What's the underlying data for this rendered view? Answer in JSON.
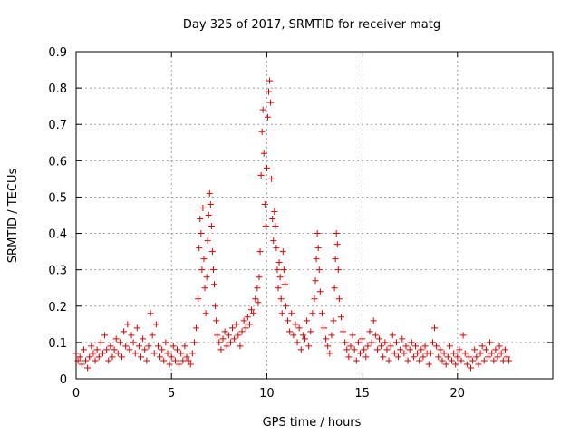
{
  "chart_data": {
    "type": "scatter",
    "title": "Day 325 of 2017, SRMTID for receiver matg",
    "xlabel": "GPS time / hours",
    "ylabel": "SRMTID / TECUs",
    "xlim": [
      0,
      25
    ],
    "ylim": [
      0,
      0.9
    ],
    "xticks": [
      0,
      5,
      10,
      15,
      20
    ],
    "yticks": [
      0,
      0.1,
      0.2,
      0.3,
      0.4,
      0.5,
      0.6,
      0.7,
      0.8,
      0.9
    ],
    "grid": true,
    "marker": "+",
    "color": "#e00000",
    "series": [
      {
        "name": "matg",
        "points": [
          [
            0.0,
            0.07
          ],
          [
            0.1,
            0.05
          ],
          [
            0.2,
            0.06
          ],
          [
            0.3,
            0.04
          ],
          [
            0.4,
            0.08
          ],
          [
            0.5,
            0.05
          ],
          [
            0.6,
            0.03
          ],
          [
            0.7,
            0.06
          ],
          [
            0.8,
            0.09
          ],
          [
            0.9,
            0.07
          ],
          [
            1.0,
            0.05
          ],
          [
            1.1,
            0.08
          ],
          [
            1.2,
            0.06
          ],
          [
            1.3,
            0.1
          ],
          [
            1.4,
            0.07
          ],
          [
            1.5,
            0.12
          ],
          [
            1.6,
            0.08
          ],
          [
            1.7,
            0.05
          ],
          [
            1.8,
            0.09
          ],
          [
            1.9,
            0.06
          ],
          [
            2.0,
            0.08
          ],
          [
            2.1,
            0.11
          ],
          [
            2.2,
            0.07
          ],
          [
            2.3,
            0.1
          ],
          [
            2.4,
            0.06
          ],
          [
            2.5,
            0.13
          ],
          [
            2.6,
            0.09
          ],
          [
            2.7,
            0.15
          ],
          [
            2.8,
            0.08
          ],
          [
            2.9,
            0.12
          ],
          [
            3.0,
            0.1
          ],
          [
            3.1,
            0.07
          ],
          [
            3.2,
            0.14
          ],
          [
            3.3,
            0.09
          ],
          [
            3.4,
            0.06
          ],
          [
            3.5,
            0.11
          ],
          [
            3.6,
            0.08
          ],
          [
            3.7,
            0.05
          ],
          [
            3.8,
            0.09
          ],
          [
            3.9,
            0.18
          ],
          [
            4.0,
            0.12
          ],
          [
            4.1,
            0.07
          ],
          [
            4.2,
            0.15
          ],
          [
            4.3,
            0.09
          ],
          [
            4.4,
            0.06
          ],
          [
            4.5,
            0.08
          ],
          [
            4.6,
            0.05
          ],
          [
            4.7,
            0.1
          ],
          [
            4.8,
            0.07
          ],
          [
            4.9,
            0.04
          ],
          [
            5.0,
            0.06
          ],
          [
            5.1,
            0.09
          ],
          [
            5.2,
            0.05
          ],
          [
            5.3,
            0.08
          ],
          [
            5.4,
            0.04
          ],
          [
            5.5,
            0.07
          ],
          [
            5.6,
            0.05
          ],
          [
            5.7,
            0.09
          ],
          [
            5.8,
            0.06
          ],
          [
            5.9,
            0.05
          ],
          [
            6.0,
            0.04
          ],
          [
            6.1,
            0.07
          ],
          [
            6.2,
            0.1
          ],
          [
            6.3,
            0.14
          ],
          [
            6.4,
            0.22
          ],
          [
            6.45,
            0.36
          ],
          [
            6.5,
            0.44
          ],
          [
            6.55,
            0.4
          ],
          [
            6.6,
            0.3
          ],
          [
            6.65,
            0.47
          ],
          [
            6.7,
            0.33
          ],
          [
            6.75,
            0.25
          ],
          [
            6.8,
            0.18
          ],
          [
            6.85,
            0.28
          ],
          [
            6.9,
            0.38
          ],
          [
            6.95,
            0.45
          ],
          [
            7.0,
            0.51
          ],
          [
            7.05,
            0.48
          ],
          [
            7.1,
            0.42
          ],
          [
            7.15,
            0.35
          ],
          [
            7.2,
            0.3
          ],
          [
            7.25,
            0.26
          ],
          [
            7.3,
            0.2
          ],
          [
            7.35,
            0.16
          ],
          [
            7.4,
            0.12
          ],
          [
            7.5,
            0.1
          ],
          [
            7.6,
            0.08
          ],
          [
            7.7,
            0.11
          ],
          [
            7.8,
            0.13
          ],
          [
            7.9,
            0.09
          ],
          [
            8.0,
            0.12
          ],
          [
            8.1,
            0.1
          ],
          [
            8.2,
            0.14
          ],
          [
            8.3,
            0.11
          ],
          [
            8.4,
            0.15
          ],
          [
            8.5,
            0.12
          ],
          [
            8.6,
            0.09
          ],
          [
            8.7,
            0.13
          ],
          [
            8.8,
            0.16
          ],
          [
            8.9,
            0.14
          ],
          [
            9.0,
            0.17
          ],
          [
            9.1,
            0.15
          ],
          [
            9.2,
            0.19
          ],
          [
            9.3,
            0.18
          ],
          [
            9.4,
            0.22
          ],
          [
            9.5,
            0.25
          ],
          [
            9.55,
            0.21
          ],
          [
            9.6,
            0.28
          ],
          [
            9.65,
            0.35
          ],
          [
            9.7,
            0.56
          ],
          [
            9.75,
            0.68
          ],
          [
            9.8,
            0.74
          ],
          [
            9.85,
            0.62
          ],
          [
            9.9,
            0.48
          ],
          [
            9.95,
            0.42
          ],
          [
            10.0,
            0.58
          ],
          [
            10.05,
            0.72
          ],
          [
            10.1,
            0.79
          ],
          [
            10.15,
            0.82
          ],
          [
            10.2,
            0.76
          ],
          [
            10.25,
            0.55
          ],
          [
            10.3,
            0.44
          ],
          [
            10.35,
            0.38
          ],
          [
            10.4,
            0.46
          ],
          [
            10.45,
            0.42
          ],
          [
            10.5,
            0.36
          ],
          [
            10.55,
            0.3
          ],
          [
            10.6,
            0.25
          ],
          [
            10.65,
            0.32
          ],
          [
            10.7,
            0.28
          ],
          [
            10.75,
            0.22
          ],
          [
            10.8,
            0.18
          ],
          [
            10.85,
            0.35
          ],
          [
            10.9,
            0.3
          ],
          [
            10.95,
            0.26
          ],
          [
            11.0,
            0.2
          ],
          [
            11.1,
            0.16
          ],
          [
            11.2,
            0.13
          ],
          [
            11.3,
            0.18
          ],
          [
            11.4,
            0.12
          ],
          [
            11.5,
            0.15
          ],
          [
            11.6,
            0.1
          ],
          [
            11.7,
            0.14
          ],
          [
            11.8,
            0.08
          ],
          [
            11.9,
            0.12
          ],
          [
            12.0,
            0.11
          ],
          [
            12.1,
            0.16
          ],
          [
            12.2,
            0.09
          ],
          [
            12.3,
            0.13
          ],
          [
            12.4,
            0.18
          ],
          [
            12.5,
            0.22
          ],
          [
            12.55,
            0.27
          ],
          [
            12.6,
            0.33
          ],
          [
            12.65,
            0.4
          ],
          [
            12.7,
            0.36
          ],
          [
            12.75,
            0.3
          ],
          [
            12.8,
            0.24
          ],
          [
            12.9,
            0.18
          ],
          [
            13.0,
            0.14
          ],
          [
            13.1,
            0.11
          ],
          [
            13.2,
            0.09
          ],
          [
            13.3,
            0.07
          ],
          [
            13.4,
            0.12
          ],
          [
            13.5,
            0.16
          ],
          [
            13.55,
            0.25
          ],
          [
            13.6,
            0.33
          ],
          [
            13.65,
            0.4
          ],
          [
            13.7,
            0.37
          ],
          [
            13.75,
            0.3
          ],
          [
            13.8,
            0.22
          ],
          [
            13.9,
            0.17
          ],
          [
            14.0,
            0.13
          ],
          [
            14.1,
            0.1
          ],
          [
            14.2,
            0.08
          ],
          [
            14.3,
            0.06
          ],
          [
            14.4,
            0.09
          ],
          [
            14.5,
            0.12
          ],
          [
            14.6,
            0.08
          ],
          [
            14.7,
            0.05
          ],
          [
            14.8,
            0.1
          ],
          [
            14.9,
            0.07
          ],
          [
            15.0,
            0.11
          ],
          [
            15.1,
            0.08
          ],
          [
            15.2,
            0.06
          ],
          [
            15.3,
            0.09
          ],
          [
            15.4,
            0.13
          ],
          [
            15.5,
            0.1
          ],
          [
            15.6,
            0.16
          ],
          [
            15.7,
            0.12
          ],
          [
            15.8,
            0.08
          ],
          [
            15.9,
            0.11
          ],
          [
            16.0,
            0.09
          ],
          [
            16.1,
            0.06
          ],
          [
            16.2,
            0.1
          ],
          [
            16.3,
            0.08
          ],
          [
            16.4,
            0.05
          ],
          [
            16.5,
            0.09
          ],
          [
            16.6,
            0.12
          ],
          [
            16.7,
            0.07
          ],
          [
            16.8,
            0.1
          ],
          [
            16.9,
            0.06
          ],
          [
            17.0,
            0.08
          ],
          [
            17.1,
            0.11
          ],
          [
            17.2,
            0.07
          ],
          [
            17.3,
            0.09
          ],
          [
            17.4,
            0.05
          ],
          [
            17.5,
            0.08
          ],
          [
            17.6,
            0.1
          ],
          [
            17.7,
            0.06
          ],
          [
            17.8,
            0.09
          ],
          [
            17.9,
            0.07
          ],
          [
            18.0,
            0.05
          ],
          [
            18.1,
            0.08
          ],
          [
            18.2,
            0.06
          ],
          [
            18.3,
            0.09
          ],
          [
            18.4,
            0.07
          ],
          [
            18.5,
            0.04
          ],
          [
            18.6,
            0.07
          ],
          [
            18.7,
            0.1
          ],
          [
            18.8,
            0.14
          ],
          [
            18.9,
            0.09
          ],
          [
            19.0,
            0.06
          ],
          [
            19.1,
            0.08
          ],
          [
            19.2,
            0.05
          ],
          [
            19.3,
            0.07
          ],
          [
            19.4,
            0.04
          ],
          [
            19.5,
            0.06
          ],
          [
            19.6,
            0.09
          ],
          [
            19.7,
            0.05
          ],
          [
            19.8,
            0.07
          ],
          [
            19.9,
            0.04
          ],
          [
            20.0,
            0.06
          ],
          [
            20.1,
            0.08
          ],
          [
            20.2,
            0.05
          ],
          [
            20.3,
            0.12
          ],
          [
            20.4,
            0.07
          ],
          [
            20.5,
            0.04
          ],
          [
            20.6,
            0.06
          ],
          [
            20.7,
            0.03
          ],
          [
            20.8,
            0.05
          ],
          [
            20.9,
            0.08
          ],
          [
            21.0,
            0.06
          ],
          [
            21.1,
            0.04
          ],
          [
            21.2,
            0.07
          ],
          [
            21.3,
            0.09
          ],
          [
            21.4,
            0.05
          ],
          [
            21.5,
            0.08
          ],
          [
            21.6,
            0.06
          ],
          [
            21.7,
            0.1
          ],
          [
            21.8,
            0.07
          ],
          [
            21.9,
            0.05
          ],
          [
            22.0,
            0.08
          ],
          [
            22.1,
            0.06
          ],
          [
            22.2,
            0.09
          ],
          [
            22.3,
            0.07
          ],
          [
            22.4,
            0.05
          ],
          [
            22.5,
            0.08
          ],
          [
            22.6,
            0.06
          ],
          [
            22.7,
            0.05
          ]
        ]
      }
    ]
  }
}
